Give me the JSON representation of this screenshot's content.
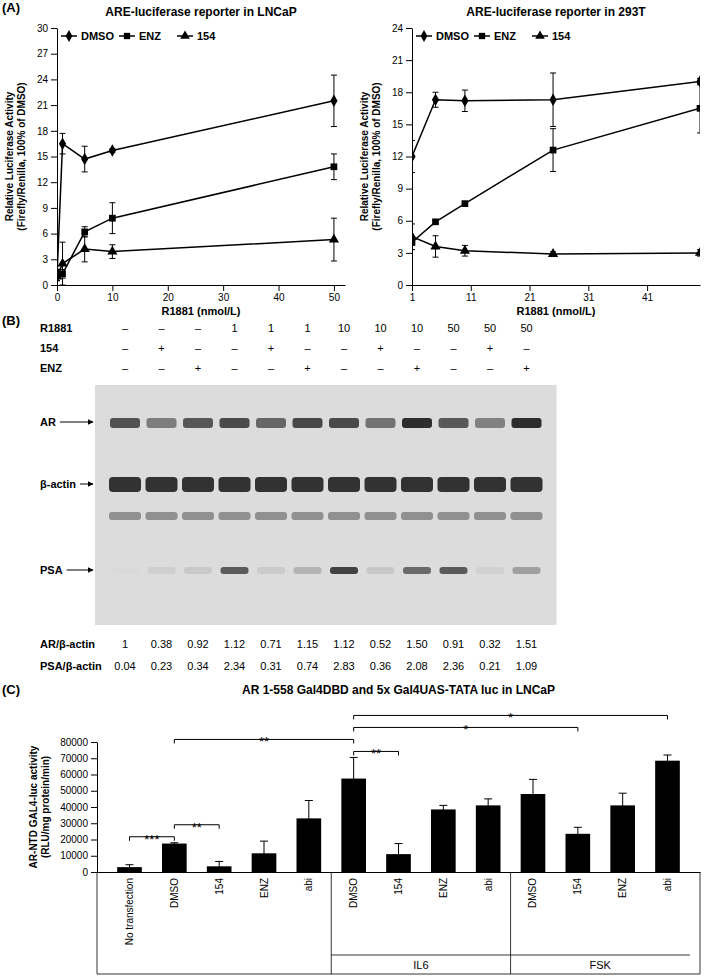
{
  "figure": {
    "panel_labels": [
      "(A)",
      "(B)",
      "(C)"
    ]
  },
  "chart_data": [
    {
      "type": "line",
      "title": "ARE-luciferase reporter in LNCaP",
      "x_label": "R1881 (nmol/L)",
      "y_label": "Relative Luciferase Activity (Firefly/Renilla, 100% of DMSO)",
      "x": [
        0,
        1,
        5,
        10,
        50
      ],
      "xlim": [
        0,
        52
      ],
      "xticks": [
        0,
        10,
        20,
        30,
        40,
        50
      ],
      "ylim": [
        0,
        30
      ],
      "yticks": [
        0,
        3,
        6,
        9,
        12,
        15,
        18,
        21,
        24,
        27,
        30
      ],
      "legend": "top",
      "series": [
        {
          "name": "DMSO",
          "color": "#000000",
          "marker": "diamond",
          "values": [
            1,
            16.5,
            14.7,
            15.7,
            21.5
          ],
          "errors": [
            0.5,
            1.2,
            1.5,
            0.2,
            3
          ]
        },
        {
          "name": "ENZ",
          "color": "#000000",
          "marker": "square",
          "values": [
            1.5,
            1.3,
            6.2,
            7.8,
            13.8
          ],
          "errors": [
            0.3,
            0.5,
            0.6,
            1.8,
            1.5
          ]
        },
        {
          "name": "154",
          "color": "#000000",
          "marker": "triangle",
          "values": [
            1,
            2.5,
            4.2,
            3.9,
            5.3
          ],
          "errors": [
            0.5,
            2.5,
            1.5,
            0.8,
            2.5
          ]
        }
      ]
    },
    {
      "type": "line",
      "title": "ARE-luciferase reporter in 293T",
      "x_label": "R1881 (nmol/L)",
      "y_label": "Relative Luciferase Activity (Firefly/Renilla, 100% of DMSO)",
      "x": [
        1,
        5,
        10,
        25,
        50
      ],
      "xlim": [
        1,
        50
      ],
      "xticks": [
        1,
        11,
        21,
        31,
        41
      ],
      "ylim": [
        0,
        24
      ],
      "yticks": [
        0,
        3,
        6,
        9,
        12,
        15,
        18,
        21,
        24
      ],
      "legend": "top",
      "series": [
        {
          "name": "DMSO",
          "color": "#000000",
          "marker": "diamond",
          "values": [
            12,
            17.3,
            17.2,
            17.3,
            19
          ],
          "errors": [
            1.5,
            0.7,
            1,
            2.5,
            0.3
          ]
        },
        {
          "name": "ENZ",
          "color": "#000000",
          "marker": "square",
          "values": [
            4,
            5.9,
            7.6,
            12.6,
            16.5
          ],
          "errors": [
            0.3,
            0.2,
            0.2,
            2,
            2.3
          ]
        },
        {
          "name": "154",
          "color": "#000000",
          "marker": "triangle",
          "values": [
            4.5,
            3.6,
            3.2,
            2.9,
            3
          ],
          "errors": [
            1.2,
            1,
            0.5,
            0.2,
            0.3
          ]
        }
      ]
    },
    {
      "type": "bar",
      "title": "AR 1-558 Gal4DBD and 5x Gal4UAS-TATA luc in LNCaP",
      "y_label": "AR-NTD GAL4-luc activity (RLU/mg protein/min)",
      "categories": [
        "No transfection",
        "DMSO",
        "154",
        "ENZ",
        "abi",
        "DMSO",
        "154",
        "ENZ",
        "abi",
        "DMSO",
        "154",
        "ENZ",
        "abi"
      ],
      "values": [
        3000,
        17500,
        3500,
        11500,
        33000,
        57500,
        11000,
        38500,
        41000,
        48000,
        23500,
        41000,
        68500
      ],
      "errors": [
        1500,
        500,
        3000,
        7500,
        11000,
        13000,
        6500,
        2500,
        4000,
        9000,
        4000,
        7500,
        3500
      ],
      "color": "#000000",
      "ylim": [
        0,
        80000
      ],
      "yticks": [
        0,
        10000,
        20000,
        30000,
        40000,
        50000,
        60000,
        70000,
        80000
      ],
      "groups": [
        {
          "label": "IL6",
          "from": 5,
          "to": 8
        },
        {
          "label": "FSK",
          "from": 9,
          "to": 12
        }
      ],
      "annotations": [
        {
          "from": 0,
          "to": 1,
          "label": "***"
        },
        {
          "from": 1,
          "to": 2,
          "label": "**"
        },
        {
          "from": 1,
          "to": 5,
          "label": "**"
        },
        {
          "from": 5,
          "to": 6,
          "label": "**"
        },
        {
          "from": 5,
          "to": 10,
          "label": "*"
        },
        {
          "from": 5,
          "to": 12,
          "label": "*"
        }
      ]
    }
  ],
  "blot": {
    "rows": [
      {
        "label": "R1881",
        "values": [
          "–",
          "–",
          "–",
          "1",
          "1",
          "1",
          "10",
          "10",
          "10",
          "50",
          "50",
          "50"
        ]
      },
      {
        "label": "154",
        "values": [
          "–",
          "+",
          "–",
          "–",
          "+",
          "–",
          "–",
          "+",
          "–",
          "–",
          "+",
          "–"
        ]
      },
      {
        "label": "ENZ",
        "values": [
          "–",
          "–",
          "+",
          "–",
          "–",
          "+",
          "–",
          "–",
          "+",
          "–",
          "–",
          "+"
        ]
      }
    ],
    "bands": [
      "AR",
      "β-actin",
      "PSA"
    ],
    "ratios": [
      {
        "label": "AR/β-actin",
        "values": [
          "1",
          "0.38",
          "0.92",
          "1.12",
          "0.71",
          "1.15",
          "1.12",
          "0.52",
          "1.50",
          "0.91",
          "0.32",
          "1.51"
        ]
      },
      {
        "label": "PSA/β-actin",
        "values": [
          "0.04",
          "0.23",
          "0.34",
          "2.34",
          "0.31",
          "0.74",
          "2.83",
          "0.36",
          "2.08",
          "2.36",
          "0.21",
          "1.09"
        ]
      }
    ]
  }
}
